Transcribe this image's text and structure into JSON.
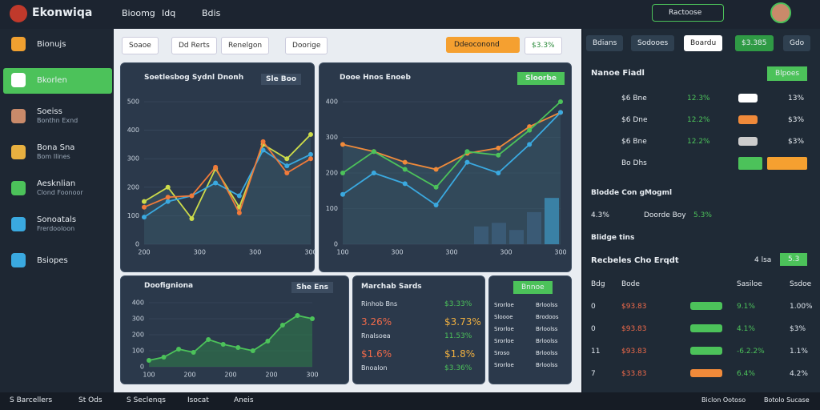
{
  "header": {
    "logo": "Ekonwiqa",
    "nav": [
      "Bioomg",
      "Idq",
      "Bdis"
    ],
    "search": "Ractoose"
  },
  "sidebar": {
    "items": [
      {
        "label": "Bionujs"
      },
      {
        "label": "Bkorlen"
      },
      {
        "label": "Soeiss",
        "sub": "Bonthn Exnd"
      },
      {
        "label": "Bona Sna",
        "sub": "Bom Ilines"
      },
      {
        "label": "Aesknlian",
        "sub": "Clond Foonoor"
      },
      {
        "label": "Sonoatals",
        "sub": "Frerdooloon"
      },
      {
        "label": "Bsiopes"
      }
    ]
  },
  "toolbar": {
    "buttons": [
      "Soaoe",
      "Dd Rerts",
      "Renelgon",
      "Doorige"
    ],
    "action": "Ddeoconond",
    "badge": "$3.3%"
  },
  "panels": {
    "trend": {
      "title": "Soetlesbog Sydnl Dnonh",
      "control": "Sle Boo",
      "ylim": [
        0,
        500
      ],
      "yticks": [
        0,
        100,
        200,
        300,
        400,
        500
      ],
      "xlabels": [
        "200",
        "300",
        "300",
        "300"
      ],
      "series": [
        {
          "color": "#cddc4a",
          "values": [
            150,
            200,
            90,
            265,
            130,
            350,
            300,
            385
          ]
        },
        {
          "color": "#3aa9e0",
          "values": [
            95,
            150,
            170,
            215,
            170,
            330,
            275,
            315
          ]
        },
        {
          "color": "#f07a3a",
          "values": [
            130,
            165,
            170,
            270,
            110,
            360,
            250,
            300
          ]
        }
      ]
    },
    "volume": {
      "title": "Dooe Hnos Enoeb",
      "control": "Sloorbe",
      "ylim": [
        0,
        400
      ],
      "yticks": [
        0,
        100,
        200,
        300,
        400
      ],
      "xlabels": [
        "100",
        "300",
        "300",
        "300",
        "300"
      ],
      "series": [
        {
          "color": "#f08a3a",
          "values": [
            280,
            260,
            230,
            210,
            255,
            270,
            330,
            370
          ]
        },
        {
          "color": "#4cc25a",
          "values": [
            200,
            260,
            210,
            160,
            260,
            250,
            320,
            400
          ]
        },
        {
          "color": "#3aa9e0",
          "values": [
            140,
            200,
            170,
            110,
            230,
            200,
            280,
            370
          ]
        }
      ],
      "bars": [
        50,
        60,
        40,
        90,
        130
      ]
    },
    "flow": {
      "title": "Doofigniona",
      "control": "She Ens",
      "ylim": [
        0,
        400
      ],
      "yticks": [
        0,
        100,
        200,
        300,
        400
      ],
      "xlabels": [
        "100",
        "200",
        "200",
        "200",
        "300"
      ],
      "area": true,
      "series": [
        {
          "color": "#4cc25a",
          "values": [
            40,
            60,
            110,
            90,
            170,
            140,
            120,
            100,
            160,
            260,
            320,
            300
          ]
        }
      ]
    }
  },
  "market": {
    "title": "Marchab Sards",
    "rows": [
      [
        "Rinhob Bns",
        "$3.33%"
      ],
      [
        "3.26%",
        "$3.73%"
      ],
      [
        "Rnalsoea",
        "11.53%"
      ],
      [
        "$1.6%",
        "$1.8%"
      ],
      [
        "Bnoalon",
        "$3.36%"
      ]
    ]
  },
  "mini": {
    "button": "Bnnoe",
    "rows": [
      [
        "Srorloe",
        "Brloolss"
      ],
      [
        "Sloooe",
        "Brodoos"
      ],
      [
        "Srorloe",
        "Brloolss"
      ],
      [
        "Srorloe",
        "Brloolss"
      ],
      [
        "Sroso",
        "Brloolss"
      ],
      [
        "Srorloe",
        "Brloolss"
      ]
    ]
  },
  "right": {
    "tabs": [
      "Bdians",
      "Sodooes",
      "Boardu",
      "$3.385",
      "Gdo"
    ],
    "title": "Nanoe Fiadl",
    "button": "Blpoes",
    "rows": [
      [
        "$6 Bne",
        "12.3%",
        "13%"
      ],
      [
        "$6 Dne",
        "12.2%",
        "$3%"
      ],
      [
        "$6 Bne",
        "12.2%",
        "$3%"
      ]
    ],
    "last": "Bo Dhs",
    "sec1": "Blodde Con gMogml",
    "sec1row": [
      "4.3%",
      "Doorde Boy",
      "5.3%"
    ],
    "sec2": "Blidge tins",
    "sec3": "Recbeles Cho Erqdt",
    "sec3a": "4 lsa",
    "sec3b": "5.3",
    "head": [
      "Bdg",
      "Bode",
      "Sasiloe",
      "Ssdoe"
    ],
    "table": [
      [
        "0",
        "$93.83",
        "9.1%",
        "1.00%"
      ],
      [
        "0",
        "$93.83",
        "4.1%",
        "$3%"
      ],
      [
        "11",
        "$93.83",
        "-6.2.2%",
        "1.1%"
      ],
      [
        "7",
        "$33.83",
        "6.4%",
        "4.2%"
      ]
    ]
  },
  "footer": {
    "items": [
      "S Barcellers",
      "St Ods",
      "S Seclenqs",
      "Isocat",
      "Aneis"
    ],
    "right": [
      "Biclon Ootoso",
      "Botolo Sucase"
    ]
  }
}
